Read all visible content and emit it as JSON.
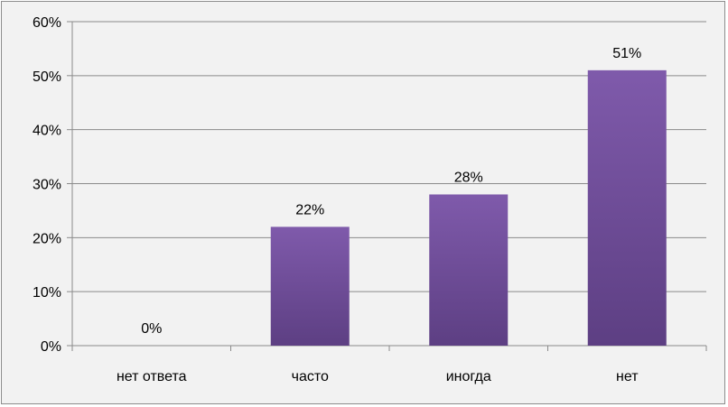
{
  "chart_data": {
    "type": "bar",
    "title": "",
    "xlabel": "",
    "ylabel": "",
    "categories": [
      "нет ответа",
      "часто",
      "иногда",
      "нет"
    ],
    "values": [
      0,
      22,
      28,
      51
    ],
    "data_labels": [
      "0%",
      "22%",
      "28%",
      "51%"
    ],
    "y_tick_labels": [
      "0%",
      "10%",
      "20%",
      "30%",
      "40%",
      "50%",
      "60%"
    ],
    "ylim": [
      0,
      60
    ],
    "grid": true,
    "legend": "none",
    "bar_color_top": "#7f5aab",
    "bar_color_bottom": "#5d3f83"
  }
}
